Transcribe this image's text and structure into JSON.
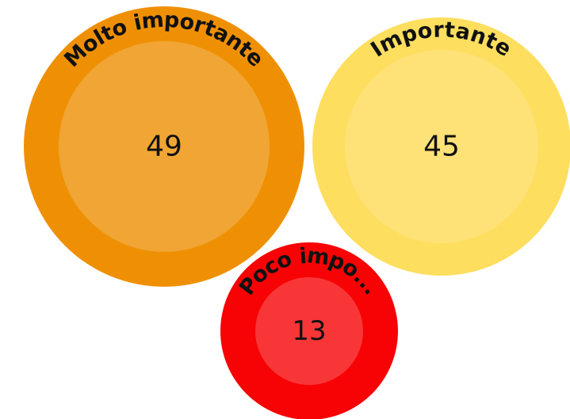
{
  "chart_data": {
    "type": "bubble",
    "title": "",
    "bubbles": [
      {
        "label": "Molto importante",
        "value": 49,
        "outer_color": "#EF9004",
        "inner_color": "#F0A535"
      },
      {
        "label": "Importante",
        "value": 45,
        "outer_color": "#FEDE5E",
        "inner_color": "#FEE278"
      },
      {
        "label": "Poco impo...",
        "value": 13,
        "outer_color": "#F70305",
        "inner_color": "#F83637"
      }
    ]
  }
}
